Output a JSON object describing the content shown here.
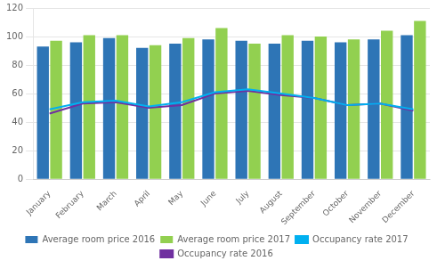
{
  "chart_data": {
    "type": "bar",
    "categories": [
      "January",
      "February",
      "March",
      "April",
      "May",
      "June",
      "July",
      "August",
      "September",
      "October",
      "November",
      "December"
    ],
    "series": [
      {
        "name": "Average room price 2016",
        "type": "bar",
        "color": "#2E75B6",
        "values": [
          93,
          96,
          99,
          92,
          95,
          98,
          97,
          95,
          97,
          96,
          98,
          101
        ]
      },
      {
        "name": "Average room price 2017",
        "type": "bar",
        "color": "#92D050",
        "values": [
          97,
          101,
          101,
          94,
          99,
          106,
          95,
          101,
          100,
          98,
          104,
          111
        ]
      },
      {
        "name": "Occupancy rate 2017",
        "type": "line",
        "color": "#00B0F0",
        "values": [
          49,
          54,
          55,
          51,
          54,
          61,
          63,
          60,
          57,
          52,
          53,
          49
        ]
      },
      {
        "name": "Occupancy rate 2016",
        "type": "line",
        "color": "#7030A0",
        "values": [
          46,
          53,
          54,
          50,
          52,
          60,
          62,
          59,
          57,
          52,
          53,
          48
        ]
      }
    ],
    "ylim": [
      0,
      120
    ],
    "yticks": [
      0,
      20,
      40,
      60,
      80,
      100,
      120
    ],
    "grid": true,
    "legend": "bottom"
  }
}
